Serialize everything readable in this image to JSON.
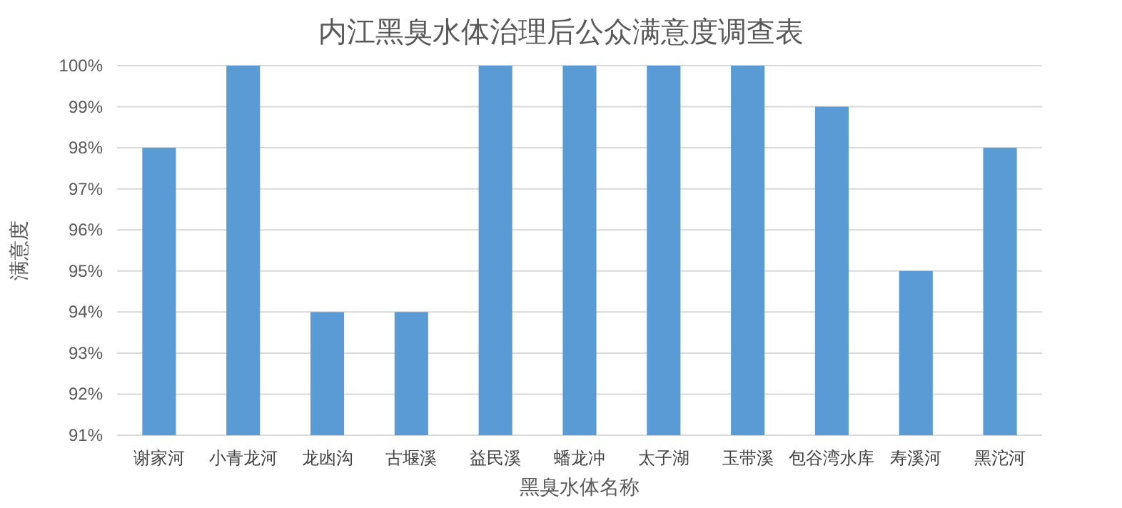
{
  "chart_data": {
    "type": "bar",
    "title": "内江黑臭水体治理后公众满意度调查表",
    "xlabel": "黑臭水体名称",
    "ylabel": "满意度",
    "categories": [
      "谢家河",
      "小青龙河",
      "龙凼沟",
      "古堰溪",
      "益民溪",
      "蟠龙冲",
      "太子湖",
      "玉带溪",
      "包谷湾水库",
      "寿溪河",
      "黑沱河"
    ],
    "values": [
      98,
      100,
      94,
      94,
      100,
      100,
      100,
      100,
      99,
      95,
      98
    ],
    "color": "#5b9bd5",
    "ylim": [
      91,
      100
    ],
    "yticks": [
      {
        "value": 91,
        "label": "91%"
      },
      {
        "value": 92,
        "label": "92%"
      },
      {
        "value": 93,
        "label": "93%"
      },
      {
        "value": 94,
        "label": "94%"
      },
      {
        "value": 95,
        "label": "95%"
      },
      {
        "value": 96,
        "label": "96%"
      },
      {
        "value": 97,
        "label": "97%"
      },
      {
        "value": 98,
        "label": "98%"
      },
      {
        "value": 99,
        "label": "99%"
      },
      {
        "value": 100,
        "label": "100%"
      }
    ],
    "grid": "y"
  }
}
